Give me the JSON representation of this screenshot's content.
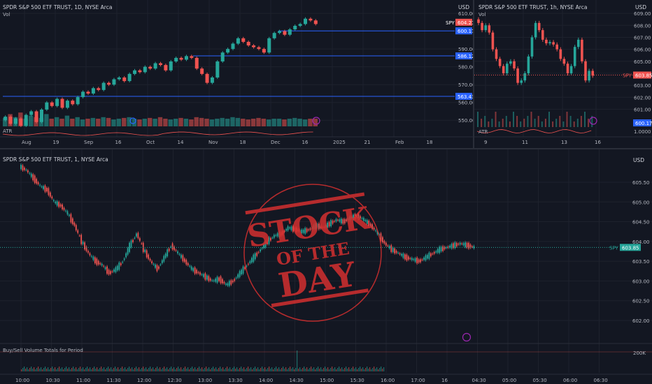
{
  "colors": {
    "bg": "#131722",
    "up": "#26a69a",
    "down": "#ef5350",
    "grid": "#1e222d",
    "level": "#2962ff",
    "text": "#b2b5be",
    "stamp": "#d32f2f"
  },
  "top_left": {
    "title": "SPDR S&P 500 ETF TRUST, 1D, NYSE Arca",
    "vol_label": "Vol",
    "atr_label": "ATR",
    "currency": "USD",
    "price_ticks": [
      "610.00",
      "590.00",
      "580.00",
      "570.00",
      "560.00",
      "550.00"
    ],
    "spy_tag": "SPY",
    "spy_price": "604.21",
    "levels": [
      "600.17",
      "586.12",
      "563.43"
    ],
    "x_ticks": [
      "Aug",
      "19",
      "Sep",
      "16",
      "Oct",
      "14",
      "Nov",
      "18",
      "Dec",
      "16",
      "2025",
      "21",
      "Feb",
      "18"
    ]
  },
  "top_right": {
    "title": "SPDR S&P 500 ETF TRUST, 1h, NYSE Arca",
    "vol_label": "Vol",
    "atr_label": "ATR",
    "currency": "USD",
    "price_ticks": [
      "609.00",
      "608.00",
      "607.00",
      "606.00",
      "605.00",
      "604.00",
      "603.00",
      "602.00",
      "601.00",
      "1.0000"
    ],
    "spy_tag": "SPY",
    "spy_price": "603.85",
    "level": "600.17",
    "x_ticks": [
      "9",
      "11",
      "13",
      "16"
    ]
  },
  "main": {
    "title": "SPDR S&P 500 ETF TRUST, 1, NYSE Arca",
    "currency": "USD",
    "price_ticks": [
      "605.50",
      "605.00",
      "604.50",
      "604.00",
      "603.50",
      "603.00",
      "602.50",
      "602.00"
    ],
    "spy_tag": "SPY",
    "spy_price": "603.85",
    "volume_label": "Buy/Sell Volume Totals for Period",
    "volume_tick": "200K",
    "x_ticks": [
      "10:00",
      "10:30",
      "11:00",
      "11:30",
      "12:00",
      "12:30",
      "13:00",
      "13:30",
      "14:00",
      "14:30",
      "15:00",
      "15:30",
      "16:00",
      "17:00",
      "16",
      "04:30",
      "05:00",
      "05:30",
      "06:00",
      "06:30"
    ]
  },
  "stamp": {
    "line1": "STOCK",
    "line2": "OF THE",
    "line3": "DAY"
  },
  "chart_data": [
    {
      "type": "candlestick",
      "title": "SPDR S&P 500 ETF TRUST, 1D, NYSE Arca",
      "ylim": [
        545,
        612
      ],
      "close": [
        552,
        548,
        551,
        547,
        553,
        555,
        549,
        556,
        560,
        558,
        562,
        557,
        561,
        559,
        563,
        566,
        565,
        568,
        567,
        571,
        570,
        573,
        574,
        572,
        576,
        578,
        577,
        580,
        579,
        582,
        581,
        578,
        583,
        585,
        584,
        586,
        585,
        579,
        576,
        571,
        574,
        583,
        588,
        590,
        593,
        596,
        594,
        592,
        591,
        590,
        588,
        596,
        599,
        600,
        598,
        601,
        603,
        604,
        607,
        606,
        604
      ],
      "volume": [
        0.55,
        0.8,
        0.6,
        0.9,
        0.5,
        0.7,
        0.6,
        0.55,
        0.8,
        0.5,
        0.6,
        0.5,
        0.7,
        0.5,
        0.6,
        0.45,
        0.5,
        0.55,
        0.5,
        0.6,
        0.55,
        0.45,
        0.5,
        0.55,
        0.6,
        0.5,
        0.45,
        0.5,
        0.55,
        0.5,
        0.6,
        0.5,
        0.45,
        0.5,
        0.55,
        0.5,
        0.45,
        0.6,
        0.55,
        0.5,
        0.45,
        0.5,
        0.55,
        0.5,
        0.6,
        0.55,
        0.5,
        0.45,
        0.5,
        0.55,
        0.5,
        0.45,
        0.5,
        0.5,
        0.45,
        0.5,
        0.55,
        0.5,
        0.45,
        0.5,
        0.5
      ]
    },
    {
      "type": "candlestick",
      "title": "SPDR S&P 500 ETF TRUST, 1h, NYSE Arca",
      "ylim": [
        600.5,
        609.3
      ],
      "close": [
        608.2,
        607.6,
        608.0,
        607.4,
        606.0,
        605.2,
        604.6,
        604.0,
        604.8,
        605.0,
        604.4,
        603.2,
        603.4,
        604.0,
        605.4,
        607.0,
        608.2,
        607.6,
        606.8,
        606.5,
        606.6,
        606.4,
        606.0,
        605.2,
        604.8,
        604.0,
        604.6,
        606.2,
        606.8,
        605.0,
        603.4,
        604.2,
        603.8
      ]
    },
    {
      "type": "line",
      "title": "SPDR S&P 500 ETF TRUST, 1, NYSE Arca",
      "ylim": [
        602.0,
        605.8
      ],
      "values": [
        605.8,
        605.6,
        605.4,
        605.3,
        605.0,
        604.9,
        604.7,
        604.4,
        604.0,
        603.7,
        603.5,
        603.4,
        603.2,
        603.3,
        603.5,
        603.9,
        604.2,
        603.8,
        603.5,
        603.3,
        603.6,
        603.9,
        603.7,
        603.5,
        603.3,
        603.2,
        603.1,
        603.0,
        603.05,
        602.9,
        603.0,
        603.2,
        603.4,
        603.6,
        603.8,
        604.0,
        604.15,
        604.2,
        604.35,
        604.3,
        604.25,
        604.3,
        604.4,
        604.35,
        604.45,
        604.55,
        604.5,
        604.6,
        604.65,
        604.55,
        604.4,
        604.2,
        603.95,
        603.8,
        603.7,
        603.6,
        603.55,
        603.5,
        603.6,
        603.7,
        603.8,
        603.85,
        603.9,
        603.95,
        603.9,
        603.85
      ]
    }
  ]
}
